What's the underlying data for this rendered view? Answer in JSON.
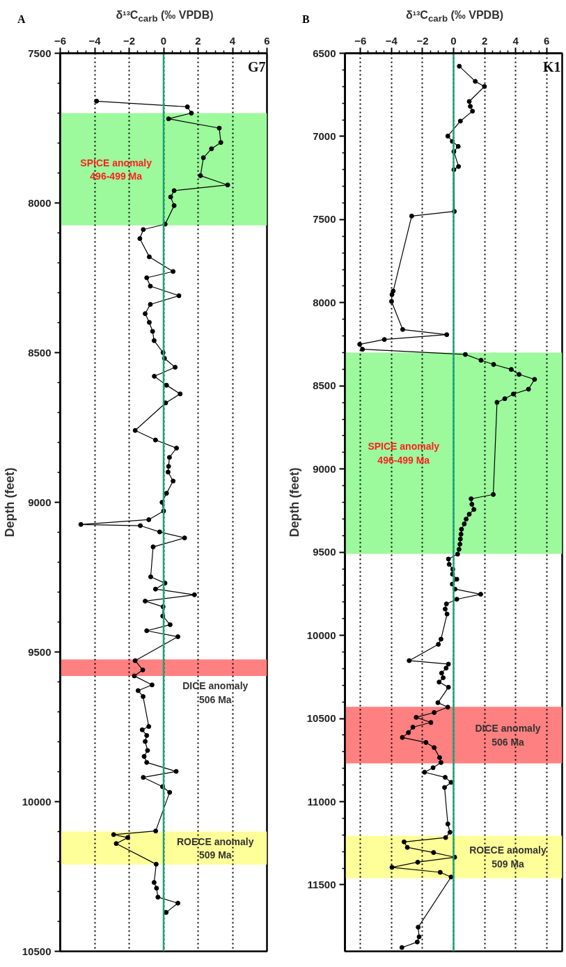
{
  "chart_data": [
    {
      "type": "line",
      "title": "A",
      "xlabel": "δ¹³C$_{carb}$ (‰ VPDB)",
      "ylabel": "Depth (feet)",
      "xlim": [
        -6,
        6
      ],
      "xticks": [
        -6,
        -4,
        -2,
        0,
        2,
        4,
        6
      ],
      "ylim": [
        10500,
        7500
      ],
      "yticks": [
        7500,
        8000,
        8500,
        9000,
        9500,
        10000,
        10500
      ],
      "grid": "x",
      "marker": "circle",
      "annotations": [
        "G7"
      ],
      "ref_lines": [
        {
          "axis": "x",
          "value": 0,
          "color": "#1aa37a"
        }
      ],
      "bands": [
        {
          "axis": "y",
          "from": 7700,
          "to": 8075,
          "label": "SPICE anomaly\n496-499 Ma",
          "color": "#9cf99c"
        },
        {
          "axis": "y",
          "from": 9525,
          "to": 9580,
          "label": "DICE anomaly\n506 Ma",
          "color": "#ff8080"
        },
        {
          "axis": "y",
          "from": 10100,
          "to": 10210,
          "label": "ROECE anomaly\n509 Ma",
          "color": "#ffff99"
        }
      ],
      "series": [
        {
          "color": "#000000",
          "x": [
            -3.89,
            1.38,
            1.61,
            0.29,
            3.23,
            3.32,
            2.78,
            2.31,
            2.14,
            3.72,
            0.61,
            0.41,
            0.61,
            0.09,
            -1.18,
            -1.38,
            -0.83,
            0.55,
            -0.98,
            -0.77,
            0.89,
            -0.77,
            -1.07,
            -0.83,
            -0.64,
            -0.55,
            -0.03,
            0.05,
            0.67,
            -0.54,
            0.17,
            0.96,
            0.12,
            -1.65,
            -0.47,
            0.75,
            0.34,
            0.29,
            0.26,
            0.55,
            0.17,
            -0.09,
            0.0,
            -0.86,
            -4.8,
            -1.35,
            -0.23,
            1.22,
            -0.61,
            -0.75,
            0.08,
            -0.47,
            1.79,
            -1.07,
            -0.03,
            -0.05,
            0.38,
            -0.98,
            0.83,
            -1.65,
            -1.21,
            -1.7,
            -0.67,
            -1.48,
            -1.19,
            -0.86,
            -1.24,
            -0.98,
            -1.07,
            -0.93,
            -1.13,
            -0.98,
            0.73,
            -1.18,
            -0.06,
            0.35,
            -0.46,
            -2.9,
            -2.08,
            -2.75,
            -0.43,
            -0.55,
            -0.41,
            -0.33,
            0.83,
            0.15
          ],
          "values": [
            7660,
            7679,
            7700,
            7719,
            7750,
            7798,
            7819,
            7849,
            7909,
            7940,
            7959,
            7980,
            8009,
            8071,
            8089,
            8119,
            8180,
            8229,
            8250,
            8278,
            8310,
            8339,
            8370,
            8399,
            8429,
            8460,
            8500,
            8519,
            8549,
            8579,
            8609,
            8638,
            8668,
            8760,
            8792,
            8819,
            8850,
            8880,
            8899,
            8929,
            8970,
            9000,
            9029,
            9058,
            9074,
            9078,
            9099,
            9119,
            9149,
            9249,
            9270,
            9290,
            9309,
            9330,
            9349,
            9380,
            9409,
            9429,
            9449,
            9529,
            9560,
            9580,
            9610,
            9629,
            9649,
            9749,
            9760,
            9779,
            9799,
            9829,
            9849,
            9869,
            9899,
            9919,
            9950,
            9969,
            10098,
            10110,
            10120,
            10140,
            10209,
            10270,
            10289,
            10319,
            10339,
            10370
          ]
        }
      ]
    },
    {
      "type": "line",
      "title": "B",
      "xlabel": "δ¹³C$_{carb}$ (‰ VPDB)",
      "ylabel": "Depth (feet)",
      "xlim": [
        -7,
        7
      ],
      "xticks": [
        -6,
        -4,
        -2,
        0,
        2,
        4,
        6
      ],
      "ylim": [
        11900,
        6500
      ],
      "yticks": [
        6500,
        7000,
        7500,
        8000,
        8500,
        9000,
        9500,
        10000,
        10500,
        11000,
        11500
      ],
      "grid": "x",
      "marker": "circle",
      "annotations": [
        "K1"
      ],
      "ref_lines": [
        {
          "axis": "x",
          "value": 0,
          "color": "#1aa37a"
        }
      ],
      "bands": [
        {
          "axis": "y",
          "from": 8300,
          "to": 9510,
          "label": "SPICE anomaly\n496-499 Ma",
          "color": "#9cf99c"
        },
        {
          "axis": "y",
          "from": 10430,
          "to": 10770,
          "label": "DICE anomaly\n506 Ma",
          "color": "#ff8080"
        },
        {
          "axis": "y",
          "from": 11205,
          "to": 11460,
          "label": "ROECE anomaly\n509 Ma",
          "color": "#ffff99"
        }
      ],
      "series": [
        {
          "color": "#000000",
          "x": [
            0.37,
            1.4,
            1.99,
            1.01,
            1.08,
            1.22,
            0.44,
            -0.37,
            -0.08,
            0.3,
            0.02,
            0.32,
            0.02,
            0.05,
            -2.7,
            -3.89,
            -3.97,
            -4.0,
            -3.28,
            -0.44,
            -4.46,
            -6.05,
            -5.87,
            0.76,
            1.77,
            2.58,
            3.72,
            4.22,
            5.22,
            4.83,
            3.86,
            3.3,
            2.8,
            2.56,
            1.13,
            1.18,
            1.31,
            1.01,
            0.81,
            0.69,
            0.51,
            0.48,
            0.44,
            0.41,
            0.35,
            0.26,
            -0.33,
            -0.28,
            -0.05,
            -0.07,
            0.21,
            -0.08,
            0.09,
            1.75,
            0.21,
            -0.46,
            -0.54,
            -0.42,
            -0.81,
            -0.98,
            -2.86,
            -0.33,
            -0.48,
            -0.77,
            -0.67,
            -0.93,
            -0.33,
            -1.01,
            -0.37,
            -1.25,
            -2.41,
            -1.46,
            -2.62,
            -2.91,
            -3.3,
            -1.78,
            -1.25,
            -0.9,
            -0.81,
            -1.32,
            -1.87,
            -0.54,
            -0.16,
            -0.58,
            -0.37,
            -0.23,
            -0.51,
            -3.19,
            -2.98,
            -1.29,
            0.07,
            -2.31,
            -3.97,
            -0.86,
            -0.16,
            -2.28,
            -2.22,
            -2.34,
            -3.33
          ],
          "values": [
            6578,
            6669,
            6700,
            6790,
            6819,
            6848,
            6908,
            6998,
            7030,
            7060,
            7091,
            7181,
            7200,
            7451,
            7479,
            7930,
            7951,
            7992,
            8161,
            8192,
            8221,
            8250,
            8280,
            8311,
            8346,
            8371,
            8401,
            8431,
            8461,
            8520,
            8549,
            8577,
            8599,
            9153,
            9179,
            9212,
            9243,
            9272,
            9301,
            9330,
            9362,
            9392,
            9421,
            9452,
            9483,
            9512,
            9541,
            9573,
            9603,
            9632,
            9663,
            9692,
            9722,
            9753,
            9783,
            9811,
            9842,
            9872,
            10023,
            10054,
            10152,
            10173,
            10197,
            10227,
            10255,
            10281,
            10312,
            10405,
            10432,
            10464,
            10493,
            10524,
            10552,
            10585,
            10614,
            10644,
            10675,
            10735,
            10765,
            10796,
            10823,
            10854,
            10884,
            10915,
            11134,
            11184,
            11216,
            11242,
            11275,
            11306,
            11334,
            11364,
            11395,
            11425,
            11453,
            11755,
            11813,
            11844,
            11877
          ]
        }
      ]
    }
  ]
}
